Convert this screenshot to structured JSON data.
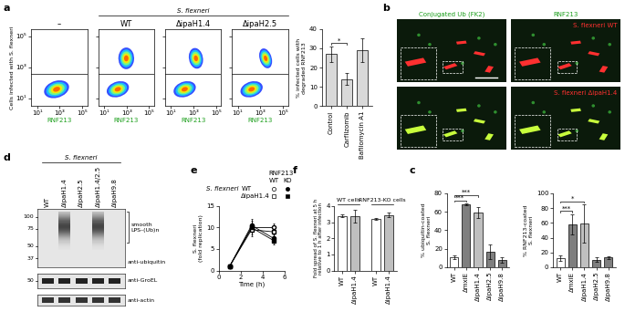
{
  "panel_labels": [
    "a",
    "b",
    "c",
    "d",
    "e",
    "f"
  ],
  "flow_header": "S. flexneri",
  "chart_data": [
    {
      "type": "density",
      "title": "–",
      "xlabel": "RNF213",
      "ylabel": "Cells infected with S. flexneri",
      "log": true,
      "xlim": [
        3,
        300000
      ],
      "ylim": [
        3,
        300000
      ],
      "xticks": [
        {
          "value": 10,
          "label": "10¹"
        },
        {
          "value": 1000,
          "label": "10³"
        },
        {
          "value": 100000,
          "label": "10⁵"
        }
      ],
      "yticks": [
        {
          "value": 10,
          "label": "10¹"
        },
        {
          "value": 1000,
          "label": "10³"
        },
        {
          "value": 100000,
          "label": "10⁵"
        }
      ]
    },
    {
      "type": "density",
      "title": "WT",
      "xlabel": "RNF213",
      "log": true,
      "tick_labels": "x",
      "xlim": [
        3,
        300000
      ],
      "ylim": [
        3,
        300000
      ],
      "xticks": [
        {
          "value": 10,
          "label": "10¹"
        },
        {
          "value": 1000,
          "label": "10³"
        },
        {
          "value": 100000,
          "label": "10⁵"
        }
      ],
      "yticks": [
        {
          "value": 10,
          "label": "10¹"
        },
        {
          "value": 1000,
          "label": "10³"
        },
        {
          "value": 100000,
          "label": "10⁵"
        }
      ]
    },
    {
      "type": "density",
      "title": "ΔipaH1.4",
      "xlabel": "RNF213",
      "log": true,
      "tick_labels": "x",
      "xlim": [
        3,
        300000
      ],
      "ylim": [
        3,
        300000
      ],
      "xticks": [
        {
          "value": 10,
          "label": "10¹"
        },
        {
          "value": 1000,
          "label": "10³"
        },
        {
          "value": 100000,
          "label": "10⁵"
        }
      ],
      "yticks": [
        {
          "value": 10,
          "label": "10¹"
        },
        {
          "value": 1000,
          "label": "10³"
        },
        {
          "value": 100000,
          "label": "10⁵"
        }
      ]
    },
    {
      "type": "density",
      "title": "ΔipaH2.5",
      "xlabel": "RNF213",
      "log": true,
      "tick_labels": "x",
      "xlim": [
        3,
        300000
      ],
      "ylim": [
        3,
        300000
      ],
      "xticks": [
        {
          "value": 10,
          "label": "10¹"
        },
        {
          "value": 1000,
          "label": "10³"
        },
        {
          "value": 100000,
          "label": "10⁵"
        }
      ],
      "yticks": [
        {
          "value": 10,
          "label": "10¹"
        },
        {
          "value": 1000,
          "label": "10³"
        },
        {
          "value": 100000,
          "label": "10⁵"
        }
      ]
    },
    {
      "type": "bar",
      "ylabel": "% infected cells with\ndegraded RNF213",
      "categories": [
        "Control",
        "Carfilzomib",
        "Bafilomycin A1"
      ],
      "values": [
        27,
        14,
        29
      ],
      "errors": [
        4,
        3,
        6
      ],
      "colors": [
        "#d9d9d9",
        "#d9d9d9",
        "#d9d9d9"
      ],
      "ylim": [
        0,
        40
      ],
      "yticks": [
        0,
        10,
        20,
        30,
        40
      ],
      "significance": [
        {
          "between": [
            "Control",
            "Carfilzomib"
          ],
          "label": "*"
        }
      ]
    },
    {
      "type": "bar",
      "ylabel": "% ubiquitin-coated\nS. flexneri",
      "categories": [
        "WT",
        "ΔmxiE",
        "ΔipaH1.4",
        "ΔipaH2.5",
        "ΔipaH9.8"
      ],
      "values": [
        11,
        68,
        59,
        17,
        8
      ],
      "errors": [
        2,
        1,
        6,
        8,
        3
      ],
      "colors": [
        "#ffffff",
        "#7f7f7f",
        "#bfbfbf",
        "#7f7f7f",
        "#7f7f7f"
      ],
      "ylim": [
        0,
        80
      ],
      "yticks": [
        0,
        20,
        40,
        60,
        80
      ],
      "significance": [
        {
          "between": [
            "WT",
            "ΔmxiE"
          ],
          "label": "***"
        },
        {
          "between": [
            "WT",
            "ΔipaH1.4"
          ],
          "label": "***"
        }
      ]
    },
    {
      "type": "bar",
      "ylabel": "% RNF213-coated\nS. flexneri",
      "categories": [
        "WT",
        "ΔmxiE",
        "ΔipaH1.4",
        "ΔipaH2.5",
        "ΔipaH9.8"
      ],
      "values": [
        12,
        58,
        59,
        10,
        13
      ],
      "errors": [
        4,
        14,
        26,
        3,
        2
      ],
      "colors": [
        "#ffffff",
        "#7f7f7f",
        "#bfbfbf",
        "#7f7f7f",
        "#7f7f7f"
      ],
      "ylim": [
        0,
        100
      ],
      "yticks": [
        0,
        20,
        40,
        60,
        80,
        100
      ],
      "significance": [
        {
          "between": [
            "WT",
            "ΔmxiE"
          ],
          "label": "***"
        },
        {
          "between": [
            "WT",
            "ΔipaH1.4"
          ],
          "label": "*"
        }
      ]
    },
    {
      "type": "line",
      "xlabel": "Time (h)",
      "ylabel": "S. flexneri\n(fold replication)",
      "x": [
        1,
        3,
        5
      ],
      "xlim": [
        0,
        6
      ],
      "xticks": [
        0,
        2,
        4,
        6
      ],
      "ylim": [
        0,
        15
      ],
      "yticks": [
        0,
        5,
        10,
        15
      ],
      "legend_title": "RNF213",
      "legend_rows_title": "S. flexneri",
      "series": [
        {
          "rnf213": "WT",
          "strain": "WT",
          "marker": "circle",
          "color": "#ffffff",
          "values": [
            1,
            10,
            10
          ],
          "errors": [
            0,
            1.5,
            1
          ]
        },
        {
          "rnf213": "KO",
          "strain": "WT",
          "marker": "circle",
          "color": "#000000",
          "values": [
            1,
            10.5,
            7.5
          ],
          "errors": [
            0,
            1.5,
            1
          ]
        },
        {
          "rnf213": "WT",
          "strain": "ΔipaH1.4",
          "marker": "square",
          "color": "#ffffff",
          "values": [
            1,
            9.5,
            9
          ],
          "errors": [
            0,
            1.5,
            1.5
          ]
        },
        {
          "rnf213": "KO",
          "strain": "ΔipaH1.4",
          "marker": "square",
          "color": "#000000",
          "values": [
            1,
            10,
            7
          ],
          "errors": [
            0,
            1,
            1
          ]
        }
      ]
    },
    {
      "type": "grouped_bar",
      "ylabel": "Fold spread of S. flexneri at 5 h\nrelative to 1 h after infection",
      "ylim": [
        0,
        4
      ],
      "yticks": [
        0,
        1,
        2,
        3,
        4
      ],
      "groups": [
        {
          "name": "WT cells",
          "categories": [
            "WT",
            "ΔipaH1.4"
          ],
          "values": [
            3.4,
            3.35
          ],
          "errors": [
            0.1,
            0.4
          ],
          "colors": [
            "#ffffff",
            "#bfbfbf"
          ]
        },
        {
          "name": "RNF213-KO cells",
          "categories": [
            "WT",
            "ΔipaH1.4"
          ],
          "values": [
            3.2,
            3.45
          ],
          "errors": [
            0.05,
            0.15
          ],
          "colors": [
            "#ffffff",
            "#bfbfbf"
          ]
        }
      ]
    }
  ],
  "microscopy": {
    "columns": [
      "Conjugated Ub (FK2)",
      "RNF213"
    ],
    "rows": [
      "S. flexneri WT",
      "S. flexneri ΔipaH1.4"
    ]
  },
  "blot": {
    "header": "S. flexneri",
    "lanes": [
      "WT",
      "ΔipaH1.4",
      "ΔipaH2.5",
      "ΔipaH1.4/2.5",
      "ΔipaH9.8"
    ],
    "smeared_lanes": [
      "ΔipaH1.4",
      "ΔipaH1.4/2.5"
    ],
    "smear_label": "smooth\nLPS–(Ub)n",
    "blots": [
      {
        "label": "anti-ubiquitin",
        "markers": [
          100,
          75,
          50,
          37
        ]
      },
      {
        "label": "anti-GroEL",
        "markers": [
          50
        ]
      },
      {
        "label": "anti-actin",
        "markers": []
      }
    ]
  }
}
